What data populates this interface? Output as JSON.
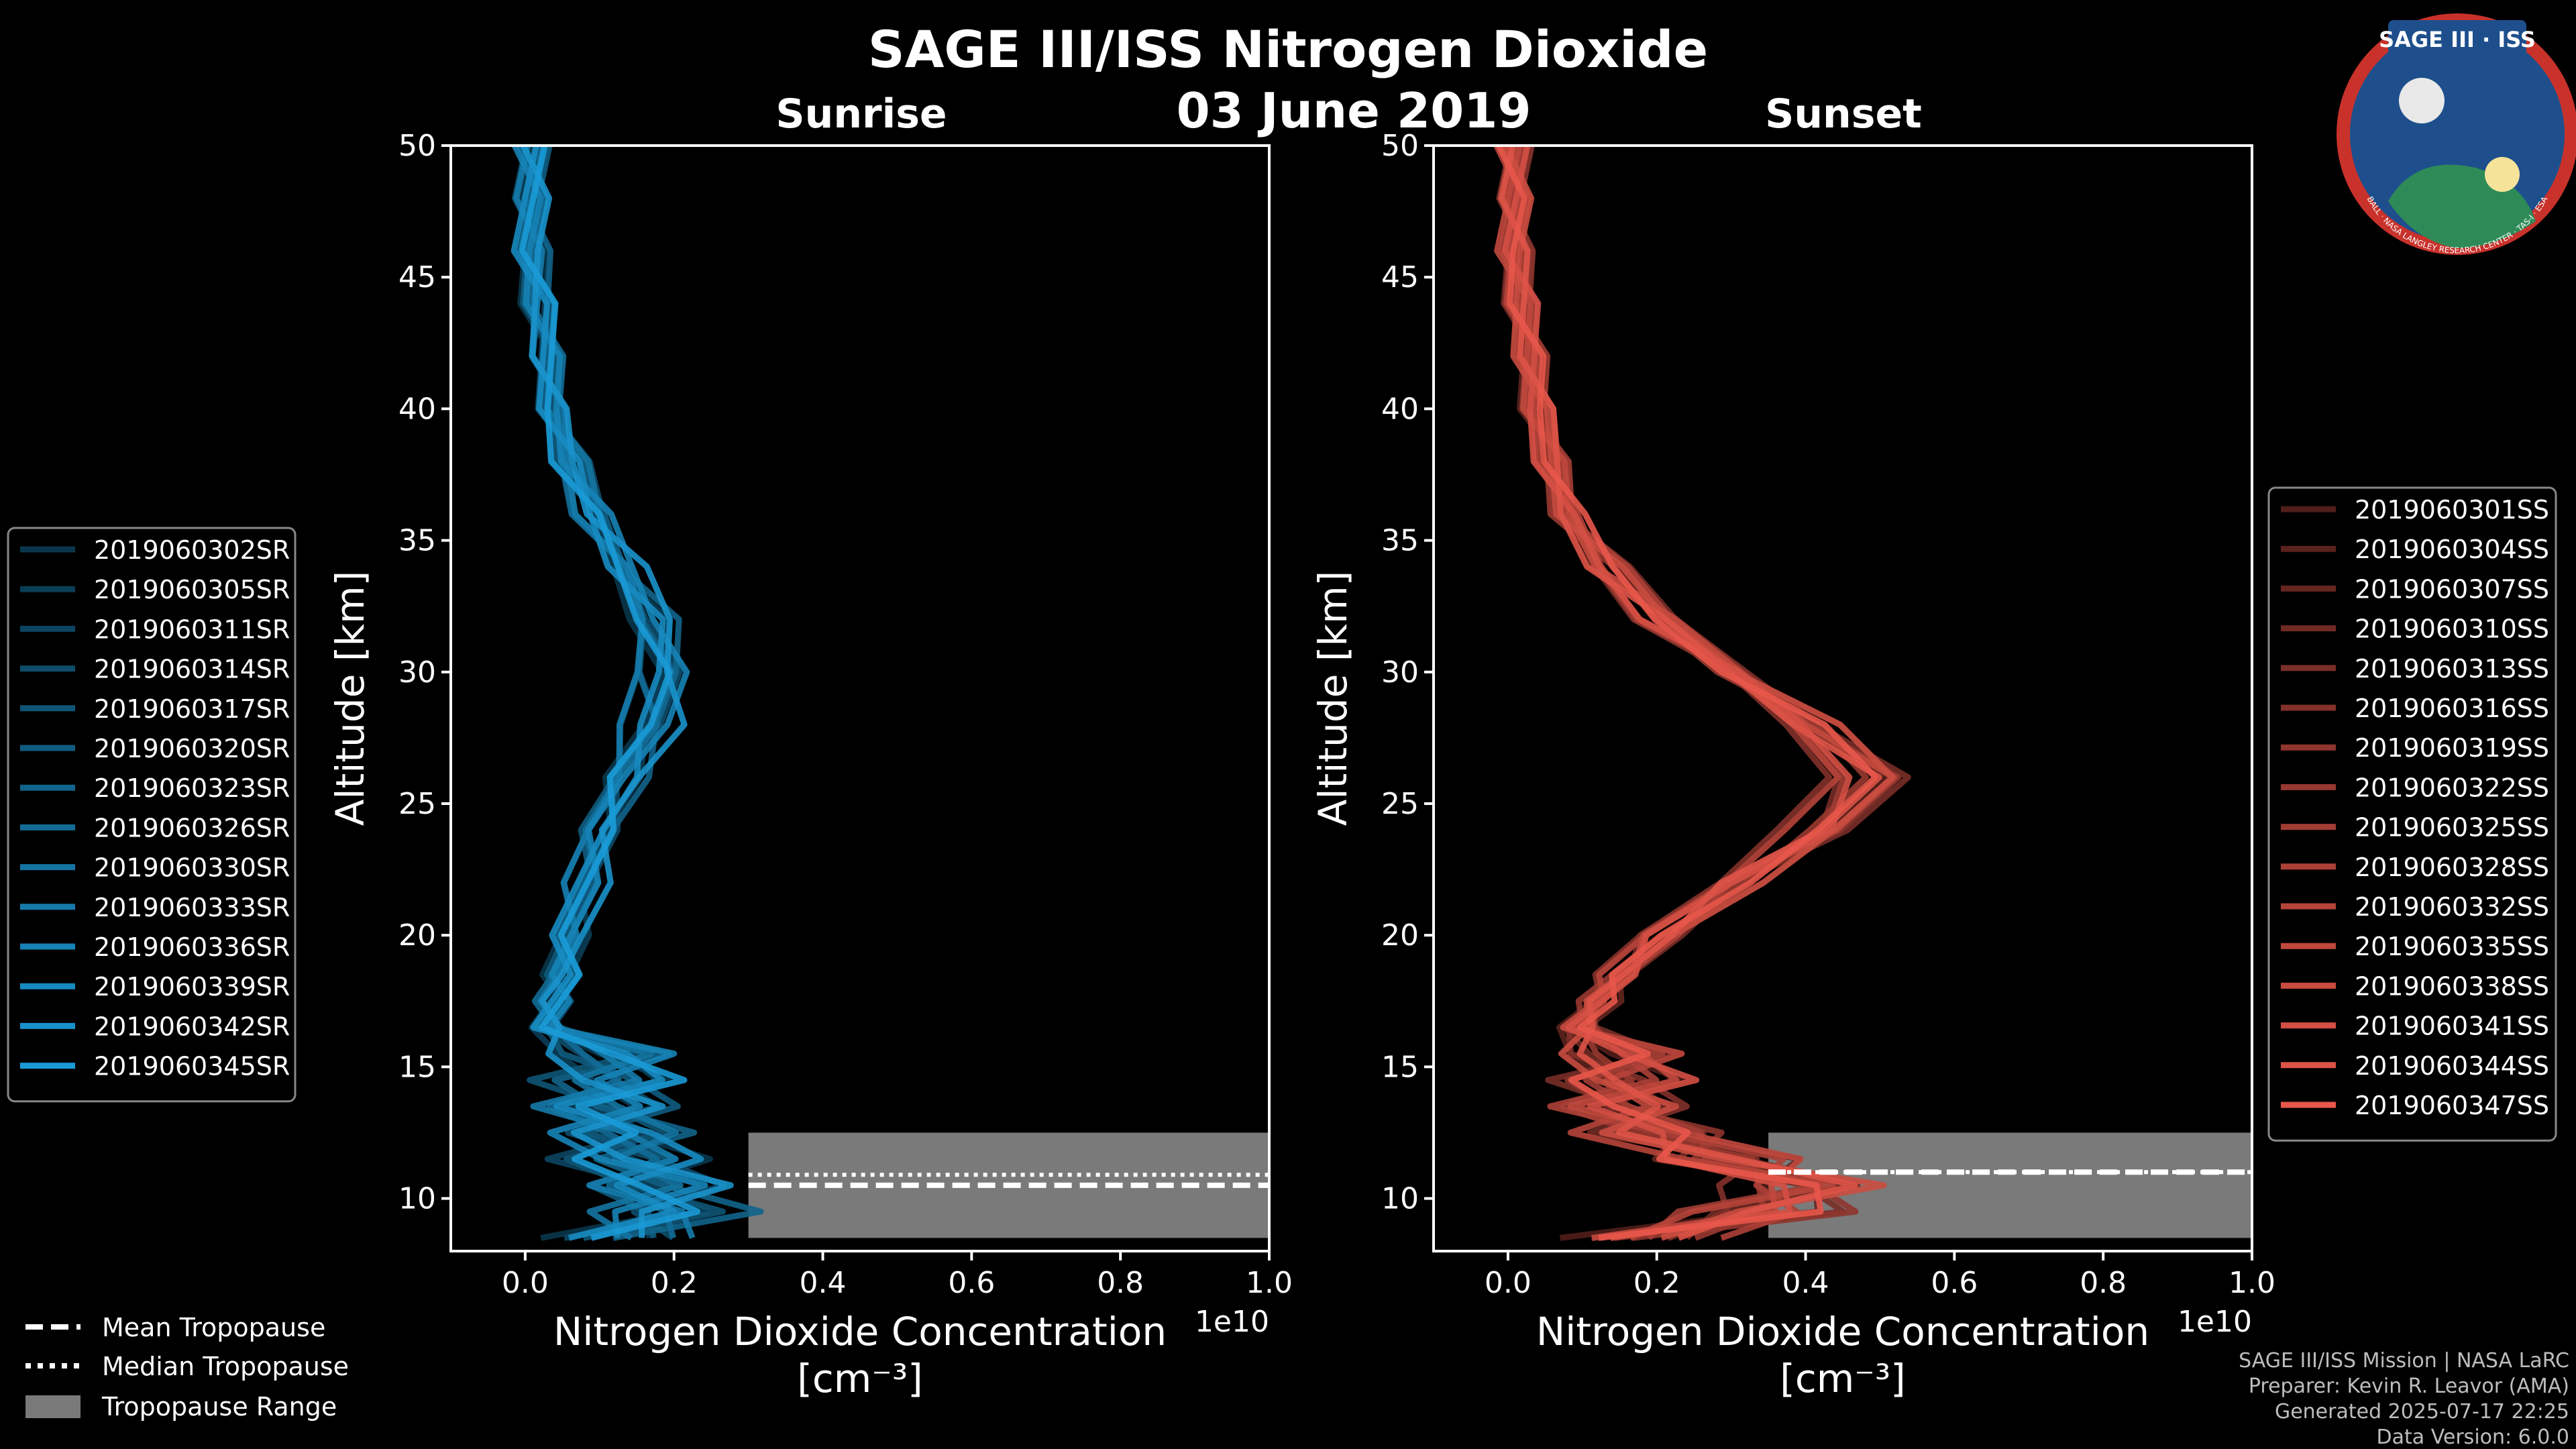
{
  "title": "SAGE III/ISS Nitrogen Dioxide",
  "date": "03 June 2019",
  "colors": {
    "background": "#000000",
    "sunrise": "#1a9ad6",
    "sunset": "#e8574a",
    "tropopause_range": "#7a7a7a"
  },
  "logo": {
    "text": "SAGE III · ISS",
    "ring_text": "BALL · NASA LANGLEY RESEARCH CENTER · TAS-I · ESA"
  },
  "chart_data": [
    {
      "type": "line",
      "title": "Sunrise",
      "xlabel": "Nitrogen Dioxide Concentration",
      "xunit": "[cm⁻³]",
      "ylabel": "Altitude [km]",
      "x_multiplier": "1e10",
      "xlim": [
        -0.1,
        1.0
      ],
      "ylim": [
        8,
        50
      ],
      "xticks": [
        "0.0",
        "0.2",
        "0.4",
        "0.6",
        "0.8",
        "1.0"
      ],
      "yticks": [
        "10",
        "15",
        "20",
        "25",
        "30",
        "35",
        "40",
        "45",
        "50"
      ],
      "legend_position": "left",
      "profile_template": {
        "altitude": [
          8.5,
          9.5,
          10.5,
          11.5,
          12.5,
          13.5,
          14.5,
          15.5,
          16.5,
          17.5,
          18.5,
          20,
          22,
          24,
          26,
          28,
          30,
          32,
          34,
          36,
          38,
          40,
          42,
          44,
          46,
          48,
          50
        ],
        "value": [
          0.05,
          0.1,
          0.08,
          0.05,
          0.04,
          0.02,
          0.02,
          0.03,
          0.03,
          0.04,
          0.05,
          0.06,
          0.08,
          0.1,
          0.13,
          0.17,
          0.18,
          0.17,
          0.13,
          0.09,
          0.06,
          0.04,
          0.03,
          0.02,
          0.01,
          0.01,
          0.01
        ]
      },
      "series": [
        {
          "name": "2019060302SR",
          "scale": 0.92
        },
        {
          "name": "2019060305SR",
          "scale": 1.05
        },
        {
          "name": "2019060311SR",
          "scale": 0.97
        },
        {
          "name": "2019060314SR",
          "scale": 1.1
        },
        {
          "name": "2019060317SR",
          "scale": 0.9
        },
        {
          "name": "2019060320SR",
          "scale": 1.0
        },
        {
          "name": "2019060323SR",
          "scale": 1.12
        },
        {
          "name": "2019060326SR",
          "scale": 0.95
        },
        {
          "name": "2019060330SR",
          "scale": 1.03
        },
        {
          "name": "2019060333SR",
          "scale": 0.88
        },
        {
          "name": "2019060336SR",
          "scale": 1.08
        },
        {
          "name": "2019060339SR",
          "scale": 0.98
        },
        {
          "name": "2019060342SR",
          "scale": 1.15
        },
        {
          "name": "2019060345SR",
          "scale": 1.0
        }
      ],
      "tropopause": {
        "range_km": [
          8.5,
          12.5
        ],
        "mean_km": 10.5,
        "median_km": 10.9,
        "x_start": 0.3
      }
    },
    {
      "type": "line",
      "title": "Sunset",
      "xlabel": "Nitrogen Dioxide Concentration",
      "xunit": "[cm⁻³]",
      "ylabel": "Altitude [km]",
      "x_multiplier": "1e10",
      "xlim": [
        -0.1,
        1.0
      ],
      "ylim": [
        8,
        50
      ],
      "xticks": [
        "0.0",
        "0.2",
        "0.4",
        "0.6",
        "0.8",
        "1.0"
      ],
      "yticks": [
        "10",
        "15",
        "20",
        "25",
        "30",
        "35",
        "40",
        "45",
        "50"
      ],
      "legend_position": "right",
      "profile_template": {
        "altitude": [
          8.5,
          9.5,
          10.5,
          11.5,
          12.5,
          13.5,
          14.5,
          15.5,
          16.5,
          17.5,
          18.5,
          20,
          22,
          24,
          26,
          28,
          30,
          32,
          34,
          36,
          38,
          40,
          42,
          44,
          46,
          48,
          50
        ],
        "value": [
          0.1,
          0.25,
          0.3,
          0.2,
          0.1,
          0.06,
          0.06,
          0.07,
          0.09,
          0.12,
          0.15,
          0.2,
          0.3,
          0.42,
          0.48,
          0.4,
          0.3,
          0.2,
          0.13,
          0.08,
          0.06,
          0.04,
          0.03,
          0.02,
          0.01,
          0.01,
          0.01
        ]
      },
      "series": [
        {
          "name": "2019060301SS",
          "scale": 0.95
        },
        {
          "name": "2019060304SS",
          "scale": 1.02
        },
        {
          "name": "2019060307SS",
          "scale": 1.08
        },
        {
          "name": "2019060310SS",
          "scale": 0.97
        },
        {
          "name": "2019060313SS",
          "scale": 1.1
        },
        {
          "name": "2019060316SS",
          "scale": 0.92
        },
        {
          "name": "2019060319SS",
          "scale": 1.05
        },
        {
          "name": "2019060322SS",
          "scale": 1.0
        },
        {
          "name": "2019060325SS",
          "scale": 0.98
        },
        {
          "name": "2019060328SS",
          "scale": 1.06
        },
        {
          "name": "2019060332SS",
          "scale": 0.94
        },
        {
          "name": "2019060335SS",
          "scale": 1.03
        },
        {
          "name": "2019060338SS",
          "scale": 1.07
        },
        {
          "name": "2019060341SS",
          "scale": 0.99
        },
        {
          "name": "2019060344SS",
          "scale": 1.01
        },
        {
          "name": "2019060347SS",
          "scale": 1.04
        }
      ],
      "tropopause": {
        "range_km": [
          8.5,
          12.5
        ],
        "mean_km": 11.0,
        "median_km": 11.0,
        "x_start": 0.35
      }
    }
  ],
  "legend_bottom": {
    "mean": "Mean Tropopause",
    "median": "Median Tropopause",
    "range": "Tropopause Range"
  },
  "footer": {
    "mission": "SAGE III/ISS Mission | NASA LaRC",
    "preparer": "Preparer: Kevin R. Leavor (AMA)",
    "generated": "Generated 2025-07-17 22:25",
    "version": "Data Version: 6.0.0"
  }
}
